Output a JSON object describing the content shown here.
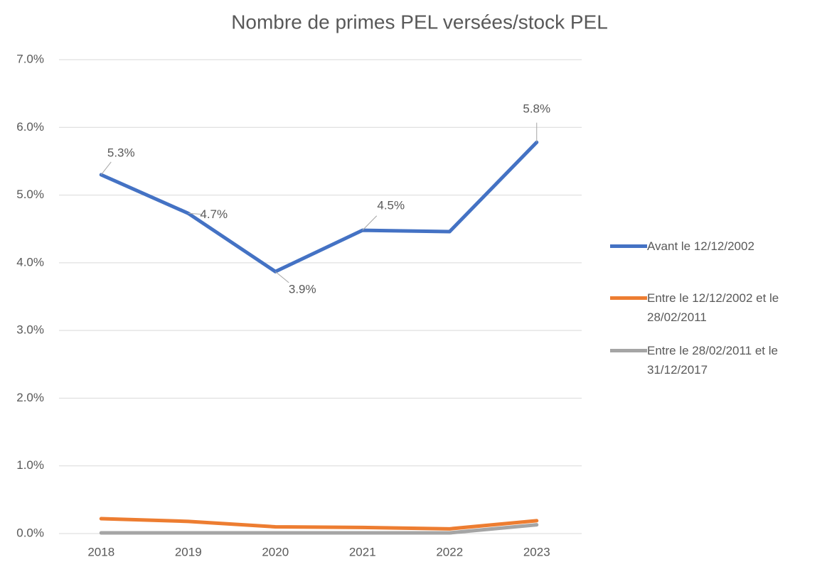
{
  "chart_data": {
    "type": "line",
    "title": "Nombre de primes PEL versées/stock PEL",
    "categories": [
      "2018",
      "2019",
      "2020",
      "2021",
      "2022",
      "2023"
    ],
    "series": [
      {
        "name": "Avant le 12/12/2002",
        "color": "#4472c4",
        "values": [
          5.3,
          4.73,
          3.87,
          4.48,
          4.46,
          5.78
        ],
        "value_labels": [
          "5.3%",
          "4.7%",
          "3.9%",
          "4.5%",
          null,
          "5.8%"
        ]
      },
      {
        "name": "Entre le 12/12/2002 et le 28/02/2011",
        "color": "#ed7d31",
        "values": [
          0.22,
          0.18,
          0.1,
          0.09,
          0.07,
          0.19
        ]
      },
      {
        "name": "Entre le 28/02/2011 et le 31/12/2017",
        "color": "#a5a5a5",
        "values": [
          0.01,
          0.01,
          0.01,
          0.01,
          0.01,
          0.13
        ]
      }
    ],
    "ylim": [
      0,
      7
    ],
    "yticks": [
      {
        "value": 0,
        "label": "0.0%"
      },
      {
        "value": 1,
        "label": "1.0%"
      },
      {
        "value": 2,
        "label": "2.0%"
      },
      {
        "value": 3,
        "label": "3.0%"
      },
      {
        "value": 4,
        "label": "4.0%"
      },
      {
        "value": 5,
        "label": "5.0%"
      },
      {
        "value": 6,
        "label": "6.0%"
      },
      {
        "value": 7,
        "label": "7.0%"
      }
    ],
    "grid": true,
    "legend": "right"
  }
}
